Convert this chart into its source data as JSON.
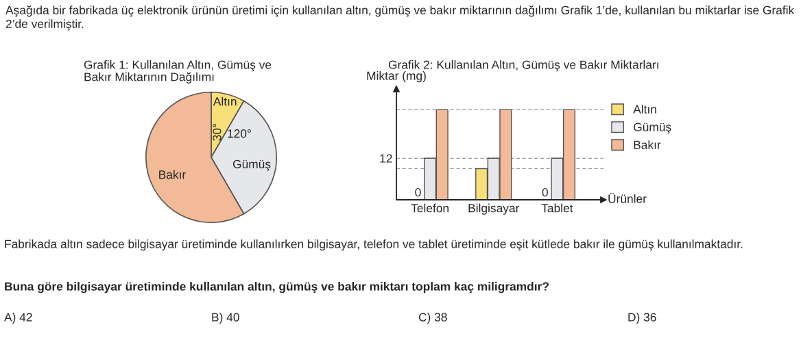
{
  "chart_data": [
    {
      "type": "pie",
      "title": "Grafik 1: Kullanılan Altın, Gümüş ve\nBakır Miktarının Dağılımı",
      "categories": [
        "Altın",
        "Gümüş",
        "Bakır"
      ],
      "values": [
        30,
        120,
        210
      ],
      "value_labels": [
        "30°",
        "120°",
        null
      ],
      "colors": [
        "#f9df78",
        "#e6e7ea",
        "#f2ba96"
      ],
      "legend": false,
      "annotations": [
        "Aşağıda bir fabrikada üç elektronik ürünün üretimi için kullanılan altın, gümüş ve bakır miktarının dağılımı Grafik 1’de, kullanılan bu miktarlar ise Grafik 2’de verilmiştir."
      ]
    },
    {
      "type": "bar",
      "title": "Grafik 2: Kullanılan Altın, Gümüş ve Bakır Miktarları",
      "ylabel": "Miktar (mg)",
      "xlabel": "Ürünler",
      "categories": [
        "Telefon",
        "Bilgisayar",
        "Tablet"
      ],
      "series": [
        {
          "name": "Altın",
          "color": "#f9df78",
          "values": [
            0,
            9,
            0
          ],
          "value_labels": [
            "0",
            null,
            "0"
          ]
        },
        {
          "name": "Gümüş",
          "color": "#e6e7ea",
          "values": [
            12,
            12,
            12
          ]
        },
        {
          "name": "Bakır",
          "color": "#f2ba96",
          "values": [
            26,
            26,
            26
          ]
        }
      ],
      "ylim": [
        0,
        32
      ],
      "yticks": [
        {
          "value": 0,
          "label": null
        },
        12
      ],
      "grid": false,
      "legend": "top right",
      "ref_lines": [
        {
          "axis": "y",
          "value": 26,
          "line_style": "dashed"
        },
        {
          "axis": "y",
          "value": 12,
          "line_style": "dashed"
        },
        {
          "axis": "y",
          "value": 9,
          "line_style": "dashed"
        }
      ],
      "annotations": [
        "Fabrikada altın sadece bilgisayar üretiminde kullanılırken bilgisayar, telefon ve tablet üretiminde eşit kütlede bakır ile gümüş kullanılmaktadır.",
        "Buna göre bilgisayar üretiminde kullanılan altın, gümüş ve bakır miktarı toplam kaç miligramdır?",
        "A) 42",
        "B) 40",
        "C) 38",
        "D) 36"
      ]
    }
  ]
}
